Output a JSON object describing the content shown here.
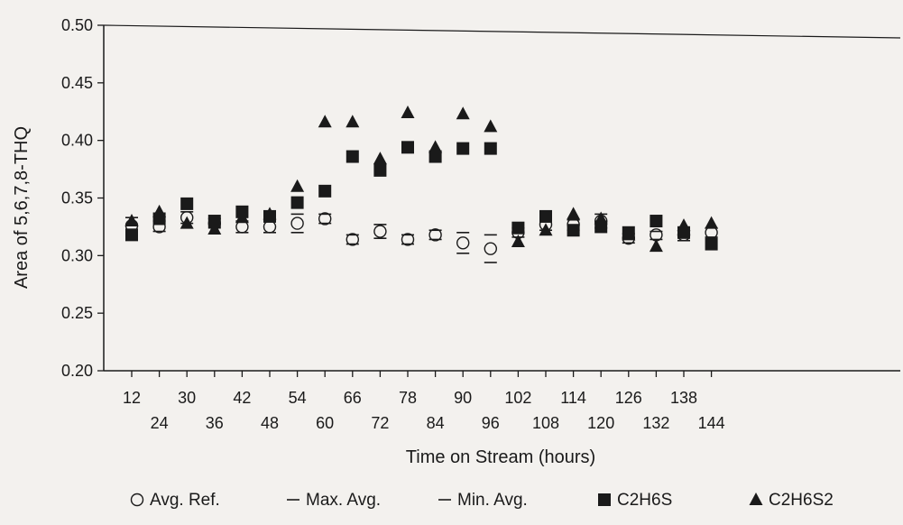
{
  "chart_data": {
    "type": "scatter",
    "title": "",
    "xlabel": "Time on Stream (hours)",
    "ylabel": "Area of 5,6,7,8-THQ",
    "ylim": [
      0.2,
      0.5
    ],
    "yticks": [
      "0.20",
      "0.25",
      "0.30",
      "0.35",
      "0.40",
      "0.45",
      "0.50"
    ],
    "x": [
      12,
      24,
      30,
      36,
      42,
      48,
      54,
      60,
      66,
      72,
      78,
      84,
      90,
      96,
      102,
      108,
      114,
      120,
      126,
      132,
      138,
      144
    ],
    "x_tick_labels": [
      "12",
      "24",
      "30",
      "36",
      "42",
      "48",
      "54",
      "60",
      "66",
      "72",
      "78",
      "84",
      "90",
      "96",
      "102",
      "108",
      "114",
      "120",
      "126",
      "132",
      "138",
      "144"
    ],
    "grid": false,
    "legend_position": "bottom",
    "series": [
      {
        "name": "Avg. Ref.",
        "marker": "circle-open",
        "values": [
          0.326,
          0.325,
          0.333,
          0.328,
          0.325,
          0.325,
          0.328,
          0.332,
          0.314,
          0.321,
          0.314,
          0.318,
          0.311,
          0.306,
          0.32,
          0.327,
          0.327,
          0.33,
          0.315,
          0.318,
          0.318,
          0.32
        ]
      },
      {
        "name": "Max. Avg.",
        "marker": "dash",
        "values": [
          0.333,
          0.33,
          0.338,
          0.332,
          0.33,
          0.33,
          0.336,
          0.336,
          0.318,
          0.327,
          0.318,
          0.322,
          0.32,
          0.318,
          0.324,
          0.33,
          0.331,
          0.336,
          0.319,
          0.321,
          0.322,
          0.324
        ]
      },
      {
        "name": "Min. Avg.",
        "marker": "dash",
        "values": [
          0.32,
          0.321,
          0.328,
          0.324,
          0.32,
          0.32,
          0.32,
          0.328,
          0.31,
          0.315,
          0.31,
          0.314,
          0.302,
          0.294,
          0.316,
          0.322,
          0.322,
          0.324,
          0.311,
          0.314,
          0.313,
          0.316
        ]
      },
      {
        "name": "C2H6S",
        "marker": "square-filled",
        "values": [
          0.318,
          0.332,
          0.345,
          0.33,
          0.338,
          0.334,
          0.346,
          0.356,
          0.386,
          0.374,
          0.394,
          0.386,
          0.393,
          0.393,
          0.324,
          0.334,
          0.322,
          0.325,
          0.32,
          0.33,
          0.32,
          0.31
        ]
      },
      {
        "name": "C2H6S2",
        "marker": "triangle-filled",
        "values": [
          0.33,
          0.338,
          0.328,
          0.323,
          0.333,
          0.336,
          0.36,
          0.416,
          0.416,
          0.384,
          0.424,
          0.394,
          0.423,
          0.412,
          0.312,
          0.322,
          0.336,
          0.332,
          0.318,
          0.308,
          0.326,
          0.328
        ]
      }
    ],
    "colors": {
      "ink": "#1a1a1a",
      "background": "#f3f1ee"
    }
  }
}
